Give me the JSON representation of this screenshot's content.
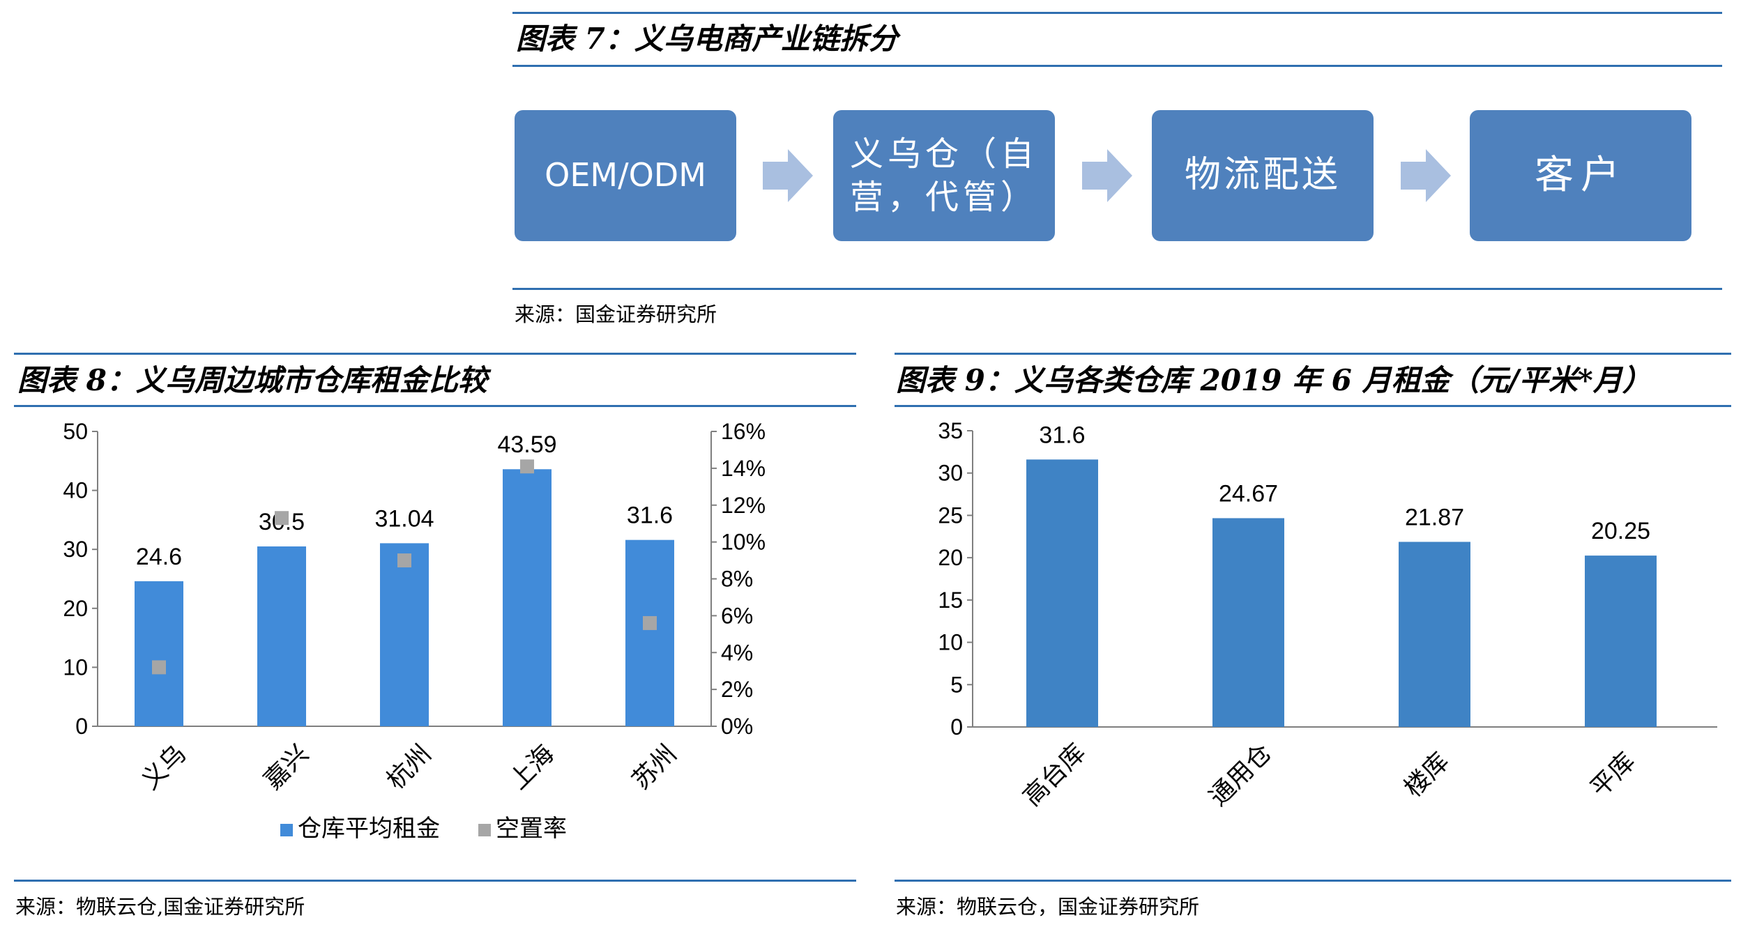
{
  "fig7": {
    "title": "图表 7：义乌电商产业链拆分",
    "steps": [
      {
        "label": "OEM/ODM"
      },
      {
        "label": "义乌仓（自营，代管）"
      },
      {
        "label": "物流配送"
      },
      {
        "label": "客户"
      }
    ],
    "source": "来源：国金证券研究所"
  },
  "fig8": {
    "title": "图表 8：义乌周边城市仓库租金比较",
    "source": "来源：物联云仓,国金证券研究所"
  },
  "fig9": {
    "title": "图表 9：义乌各类仓库 2019 年 6 月租金（元/平米*月）",
    "source": "来源：物联云仓，国金证券研究所"
  },
  "chart_data": [
    {
      "type": "bar",
      "categories": [
        "义乌",
        "嘉兴",
        "杭州",
        "上海",
        "苏州"
      ],
      "series": [
        {
          "name": "仓库平均租金",
          "kind": "bar",
          "axis": "left",
          "values": [
            24.6,
            30.5,
            31.04,
            43.59,
            31.6
          ],
          "labels": [
            "24.6",
            "30.5",
            "31.04",
            "43.59",
            "31.6"
          ],
          "color": "#418bd9"
        },
        {
          "name": "空置率",
          "kind": "marker",
          "axis": "right",
          "values": [
            0.032,
            0.113,
            0.09,
            0.141,
            0.056
          ],
          "color": "#a6a6a6"
        }
      ],
      "ylim": [
        0,
        50
      ],
      "yticks": [
        "0",
        "10",
        "20",
        "30",
        "40",
        "50"
      ],
      "y2lim": [
        0,
        0.16
      ],
      "y2ticks": [
        "0%",
        "2%",
        "4%",
        "6%",
        "8%",
        "10%",
        "12%",
        "14%",
        "16%"
      ],
      "legend": "bottom"
    },
    {
      "type": "bar",
      "categories": [
        "高台库",
        "通用仓",
        "楼库",
        "平库"
      ],
      "series": [
        {
          "values": [
            31.6,
            24.67,
            21.87,
            20.25
          ],
          "labels": [
            "31.6",
            "24.67",
            "21.87",
            "20.25"
          ],
          "color": "#3f83c5"
        }
      ],
      "ylim": [
        0,
        35
      ],
      "yticks": [
        "0",
        "5",
        "10",
        "15",
        "20",
        "25",
        "30",
        "35"
      ]
    }
  ]
}
